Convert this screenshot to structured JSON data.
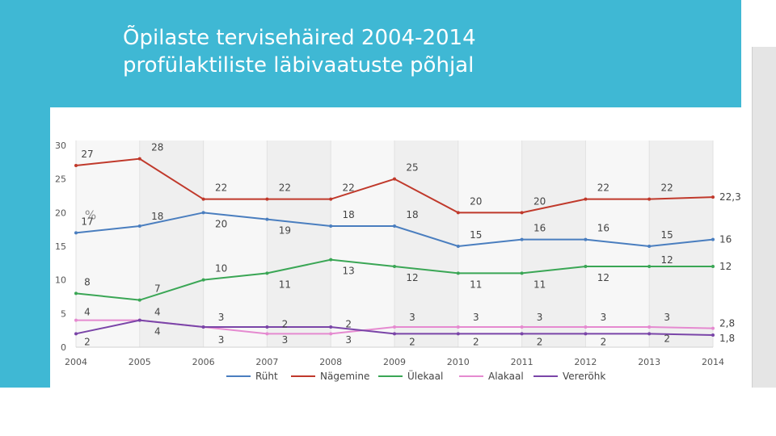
{
  "slide": {
    "title_line1": "Õpilaste tervisehäired 2004-2014",
    "title_line2": "profülaktiliste läbivaatuste põhjal"
  },
  "colors": {
    "header": "#3fb8d4",
    "Rüht": "#4a7ebf",
    "Nägemine": "#c0392b",
    "Ülekaal": "#3aa655",
    "Alakaal": "#e58ad0",
    "Vereröhk": "#7a45a8"
  },
  "chart_data": {
    "type": "line",
    "title": "",
    "ylabel": "%",
    "xlabel": "",
    "ylim": [
      0,
      30
    ],
    "yticks": [
      0,
      5,
      10,
      15,
      20,
      25,
      30
    ],
    "categories": [
      "2004",
      "2005",
      "2006",
      "2007",
      "2008",
      "2009",
      "2010",
      "2011",
      "2012",
      "2013",
      "2014"
    ],
    "legend_position": "bottom",
    "series": [
      {
        "name": "Rüht",
        "values": [
          17,
          18,
          20,
          19,
          18,
          18,
          15,
          16,
          16,
          15,
          16
        ],
        "labels": [
          "17",
          "18",
          "20",
          "19",
          "18",
          "18",
          "15",
          "16",
          "16",
          "15",
          "16"
        ]
      },
      {
        "name": "Nägemine",
        "values": [
          27,
          28,
          22,
          22,
          22,
          25,
          20,
          20,
          22,
          22,
          22.3
        ],
        "labels": [
          "27",
          "28",
          "22",
          "22",
          "22",
          "25",
          "20",
          "20",
          "22",
          "22",
          "22,3"
        ]
      },
      {
        "name": "Ülekaal",
        "values": [
          8,
          7,
          10,
          11,
          13,
          12,
          11,
          11,
          12,
          12,
          12
        ],
        "labels": [
          "8",
          "7",
          "10",
          "11",
          "13",
          "12",
          "11",
          "11",
          "12",
          "12",
          "12"
        ]
      },
      {
        "name": "Alakaal",
        "values": [
          4,
          4,
          3,
          2,
          2,
          3,
          3,
          3,
          3,
          3,
          2.8
        ],
        "labels": [
          "4",
          "4",
          "3",
          "2",
          "2",
          "3",
          "3",
          "3",
          "3",
          "3",
          "2,8"
        ]
      },
      {
        "name": "Vereröhk",
        "values": [
          2,
          4,
          3,
          3,
          3,
          2,
          2,
          2,
          2,
          2,
          1.8
        ],
        "labels": [
          "2",
          "4",
          "3",
          "3",
          "3",
          "2",
          "2",
          "2",
          "2",
          "2",
          "1,8"
        ]
      }
    ]
  }
}
